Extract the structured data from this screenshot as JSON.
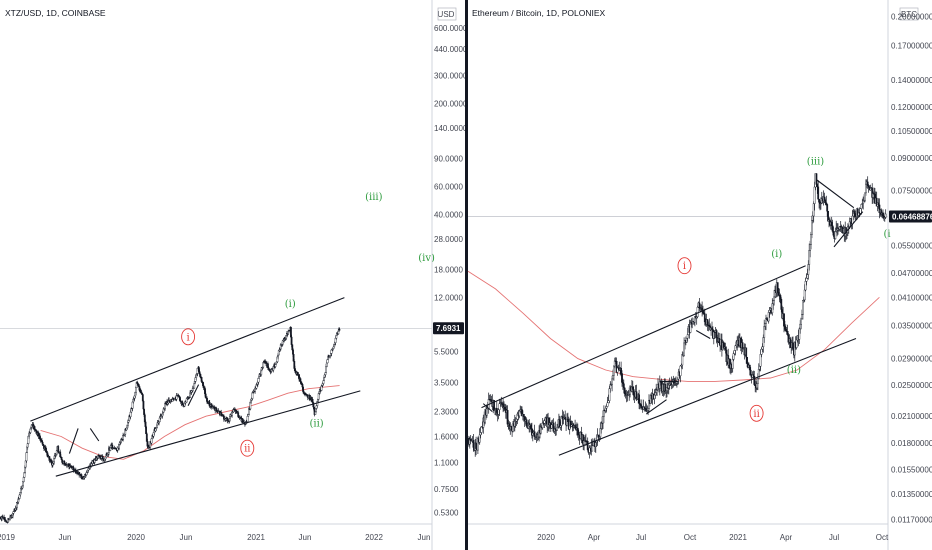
{
  "chart_data": [
    {
      "type": "candlestick",
      "title": "XTZ/USD, 1D, COINBASE",
      "currency": "USD",
      "scale": "log",
      "ylim": [
        0.45,
        800
      ],
      "xlim": [
        "2019-01-01",
        "2022-07-01"
      ],
      "price_ticks": [
        "600.0000",
        "440.0000",
        "300.0000",
        "200.0000",
        "140.0000",
        "90.0000",
        "60.0000",
        "40.0000",
        "28.0000",
        "18.0000",
        "12.0000",
        "7.6931",
        "5.5000",
        "3.5000",
        "2.3000",
        "1.6000",
        "1.1000",
        "0.7500",
        "0.5300"
      ],
      "current_price": "7.6931",
      "time_ticks": [
        "2019",
        "Jun",
        "2020",
        "Jun",
        "2021",
        "Jun",
        "2022",
        "Jun"
      ],
      "price_series": [
        [
          "2019-01-01",
          0.5
        ],
        [
          "2019-01-20",
          0.47
        ],
        [
          "2019-02-05",
          0.5
        ],
        [
          "2019-02-20",
          0.6
        ],
        [
          "2019-03-10",
          0.82
        ],
        [
          "2019-03-25",
          1.55
        ],
        [
          "2019-04-05",
          1.9
        ],
        [
          "2019-04-20",
          1.7
        ],
        [
          "2019-05-05",
          1.45
        ],
        [
          "2019-05-20",
          1.25
        ],
        [
          "2019-06-05",
          1.05
        ],
        [
          "2019-06-20",
          1.35
        ],
        [
          "2019-07-05",
          1.1
        ],
        [
          "2019-07-25",
          1.05
        ],
        [
          "2019-08-15",
          0.95
        ],
        [
          "2019-09-05",
          0.88
        ],
        [
          "2019-09-25",
          1.05
        ],
        [
          "2019-10-15",
          1.2
        ],
        [
          "2019-11-05",
          1.15
        ],
        [
          "2019-11-25",
          1.4
        ],
        [
          "2019-12-10",
          1.3
        ],
        [
          "2019-12-25",
          1.5
        ],
        [
          "2020-01-10",
          1.8
        ],
        [
          "2020-01-25",
          2.4
        ],
        [
          "2020-02-10",
          3.5
        ],
        [
          "2020-02-25",
          2.9
        ],
        [
          "2020-03-13",
          1.3
        ],
        [
          "2020-03-30",
          1.7
        ],
        [
          "2020-04-15",
          2.0
        ],
        [
          "2020-05-05",
          2.6
        ],
        [
          "2020-05-25",
          2.7
        ],
        [
          "2020-06-10",
          2.9
        ],
        [
          "2020-06-25",
          2.5
        ],
        [
          "2020-07-10",
          2.8
        ],
        [
          "2020-07-25",
          3.2
        ],
        [
          "2020-08-08",
          4.3
        ],
        [
          "2020-08-20",
          3.6
        ],
        [
          "2020-09-05",
          2.6
        ],
        [
          "2020-09-25",
          2.4
        ],
        [
          "2020-10-15",
          2.2
        ],
        [
          "2020-11-05",
          2.0
        ],
        [
          "2020-11-25",
          2.4
        ],
        [
          "2020-12-10",
          2.1
        ],
        [
          "2020-12-28",
          1.9
        ],
        [
          "2021-01-15",
          2.9
        ],
        [
          "2021-02-01",
          3.5
        ],
        [
          "2021-02-20",
          4.9
        ],
        [
          "2021-03-10",
          4.1
        ],
        [
          "2021-03-25",
          4.5
        ],
        [
          "2021-04-10",
          6.0
        ],
        [
          "2021-04-25",
          6.8
        ],
        [
          "2021-05-08",
          7.6
        ],
        [
          "2021-05-20",
          4.2
        ],
        [
          "2021-06-01",
          3.9
        ],
        [
          "2021-06-20",
          2.9
        ],
        [
          "2021-07-10",
          2.8
        ],
        [
          "2021-07-20",
          2.2
        ],
        [
          "2021-08-01",
          3.0
        ],
        [
          "2021-08-15",
          3.6
        ],
        [
          "2021-08-28",
          5.1
        ],
        [
          "2021-09-10",
          5.6
        ],
        [
          "2021-09-22",
          7.0
        ],
        [
          "2021-10-01",
          7.69
        ]
      ],
      "moving_average": [
        [
          "2019-05-01",
          1.75
        ],
        [
          "2019-07-01",
          1.6
        ],
        [
          "2019-09-01",
          1.35
        ],
        [
          "2019-11-01",
          1.2
        ],
        [
          "2020-01-01",
          1.15
        ],
        [
          "2020-03-01",
          1.3
        ],
        [
          "2020-05-01",
          1.6
        ],
        [
          "2020-07-01",
          1.9
        ],
        [
          "2020-09-01",
          2.15
        ],
        [
          "2020-11-01",
          2.3
        ],
        [
          "2021-01-01",
          2.45
        ],
        [
          "2021-03-01",
          2.7
        ],
        [
          "2021-05-01",
          3.0
        ],
        [
          "2021-07-01",
          3.2
        ],
        [
          "2021-09-01",
          3.3
        ],
        [
          "2021-10-01",
          3.35
        ]
      ],
      "trendlines": [
        [
          [
            "2019-04-01",
            2.0
          ],
          [
            "2021-10-15",
            12.0
          ]
        ],
        [
          [
            "2019-06-15",
            0.9
          ],
          [
            "2021-12-01",
            3.1
          ]
        ],
        [
          [
            "2019-07-25",
            1.25
          ],
          [
            "2019-08-20",
            1.8
          ]
        ],
        [
          [
            "2019-09-25",
            1.8
          ],
          [
            "2019-10-20",
            1.5
          ]
        ],
        [
          [
            "2020-07-10",
            2.5
          ],
          [
            "2020-08-10",
            3.4
          ]
        ]
      ],
      "wave_labels": [
        {
          "text": "i",
          "date": "2020-07-10",
          "price": 6.8,
          "style": "circled",
          "color": "#e53935"
        },
        {
          "text": "ii",
          "date": "2021-01-01",
          "price": 1.35,
          "style": "circled",
          "color": "#e53935"
        },
        {
          "text": "(i)",
          "date": "2021-05-08",
          "price": 11.0,
          "style": "paren",
          "color": "#2e9c3e"
        },
        {
          "text": "(ii)",
          "date": "2021-07-25",
          "price": 1.95,
          "style": "paren",
          "color": "#2e9c3e"
        },
        {
          "text": "(iii)",
          "date": "2022-01-10",
          "price": 52.0,
          "style": "paren",
          "color": "#2e9c3e"
        },
        {
          "text": "(iv)",
          "date": "2022-06-15",
          "price": 21.5,
          "style": "paren",
          "color": "#2e9c3e"
        }
      ]
    },
    {
      "type": "candlestick",
      "title": "Ethereum / Bitcoin, 1D, POLONIEX",
      "currency": "BTC",
      "scale": "log",
      "ylim": [
        0.0114,
        0.21
      ],
      "xlim": [
        "2019-04-01",
        "2021-10-20"
      ],
      "price_ticks": [
        "0.20000000",
        "0.17000000",
        "0.14000000",
        "0.12000000",
        "0.10500000",
        "0.09000000",
        "0.07500000",
        "0.06468876",
        "0.05500000",
        "0.04700000",
        "0.04100000",
        "0.03500000",
        "0.02900000",
        "0.02500000",
        "0.02100000",
        "0.01800000",
        "0.01550000",
        "0.01350000",
        "0.01170000"
      ],
      "current_price": "0.06468876",
      "time_ticks": [
        "2020",
        "Apr",
        "Jul",
        "Oct",
        "2021",
        "Apr",
        "Jul",
        "Oct"
      ],
      "price_series": [
        [
          "2019-04-01",
          0.0185
        ],
        [
          "2019-04-20",
          0.0175
        ],
        [
          "2019-05-05",
          0.0205
        ],
        [
          "2019-05-20",
          0.023
        ],
        [
          "2019-06-05",
          0.0215
        ],
        [
          "2019-06-20",
          0.0225
        ],
        [
          "2019-07-05",
          0.019
        ],
        [
          "2019-07-25",
          0.0215
        ],
        [
          "2019-08-15",
          0.0195
        ],
        [
          "2019-09-01",
          0.0185
        ],
        [
          "2019-09-20",
          0.0205
        ],
        [
          "2019-10-10",
          0.0195
        ],
        [
          "2019-10-30",
          0.0205
        ],
        [
          "2019-11-20",
          0.0195
        ],
        [
          "2019-12-10",
          0.0185
        ],
        [
          "2019-12-25",
          0.0175
        ],
        [
          "2020-01-10",
          0.0178
        ],
        [
          "2020-01-25",
          0.0205
        ],
        [
          "2020-02-10",
          0.024
        ],
        [
          "2020-02-20",
          0.028
        ],
        [
          "2020-03-05",
          0.027
        ],
        [
          "2020-03-13",
          0.0235
        ],
        [
          "2020-03-25",
          0.0245
        ],
        [
          "2020-04-10",
          0.0235
        ],
        [
          "2020-04-25",
          0.0215
        ],
        [
          "2020-05-10",
          0.0228
        ],
        [
          "2020-05-25",
          0.025
        ],
        [
          "2020-06-10",
          0.0245
        ],
        [
          "2020-06-25",
          0.025
        ],
        [
          "2020-07-10",
          0.0255
        ],
        [
          "2020-07-25",
          0.0315
        ],
        [
          "2020-08-05",
          0.0345
        ],
        [
          "2020-08-15",
          0.036
        ],
        [
          "2020-08-28",
          0.0395
        ],
        [
          "2020-09-10",
          0.0355
        ],
        [
          "2020-09-25",
          0.0335
        ],
        [
          "2020-10-10",
          0.0325
        ],
        [
          "2020-10-25",
          0.0295
        ],
        [
          "2020-11-05",
          0.0275
        ],
        [
          "2020-11-20",
          0.0325
        ],
        [
          "2020-12-05",
          0.0305
        ],
        [
          "2020-12-20",
          0.0265
        ],
        [
          "2021-01-01",
          0.0245
        ],
        [
          "2021-01-10",
          0.0295
        ],
        [
          "2021-01-20",
          0.0355
        ],
        [
          "2021-02-05",
          0.0385
        ],
        [
          "2021-02-15",
          0.0445
        ],
        [
          "2021-02-25",
          0.0385
        ],
        [
          "2021-03-10",
          0.0325
        ],
        [
          "2021-03-25",
          0.0305
        ],
        [
          "2021-04-05",
          0.0335
        ],
        [
          "2021-04-15",
          0.0405
        ],
        [
          "2021-04-25",
          0.0485
        ],
        [
          "2021-05-05",
          0.0635
        ],
        [
          "2021-05-12",
          0.0815
        ],
        [
          "2021-05-20",
          0.0705
        ],
        [
          "2021-06-01",
          0.0715
        ],
        [
          "2021-06-10",
          0.0635
        ],
        [
          "2021-06-22",
          0.0575
        ],
        [
          "2021-07-05",
          0.0615
        ],
        [
          "2021-07-20",
          0.0585
        ],
        [
          "2021-08-05",
          0.0655
        ],
        [
          "2021-08-20",
          0.0675
        ],
        [
          "2021-09-05",
          0.0785
        ],
        [
          "2021-09-20",
          0.0715
        ],
        [
          "2021-10-05",
          0.0665
        ],
        [
          "2021-10-15",
          0.0647
        ]
      ],
      "moving_average": [
        [
          "2019-04-01",
          0.0475
        ],
        [
          "2019-06-01",
          0.043
        ],
        [
          "2019-08-01",
          0.0375
        ],
        [
          "2019-10-01",
          0.0325
        ],
        [
          "2019-12-01",
          0.029
        ],
        [
          "2020-02-01",
          0.0272
        ],
        [
          "2020-04-01",
          0.0262
        ],
        [
          "2020-06-01",
          0.0258
        ],
        [
          "2020-08-01",
          0.0255
        ],
        [
          "2020-10-01",
          0.0255
        ],
        [
          "2020-12-01",
          0.0257
        ],
        [
          "2021-02-01",
          0.026
        ],
        [
          "2021-04-01",
          0.0272
        ],
        [
          "2021-06-01",
          0.0305
        ],
        [
          "2021-08-01",
          0.0355
        ],
        [
          "2021-10-01",
          0.041
        ]
      ],
      "trendlines": [
        [
          [
            "2019-05-01",
            0.022
          ],
          [
            "2021-04-20",
            0.049
          ]
        ],
        [
          [
            "2019-10-20",
            0.0168
          ],
          [
            "2021-08-10",
            0.0325
          ]
        ],
        [
          [
            "2019-05-05",
            0.0225
          ],
          [
            "2019-05-25",
            0.0215
          ]
        ],
        [
          [
            "2020-05-01",
            0.0212
          ],
          [
            "2020-06-15",
            0.023
          ]
        ],
        [
          [
            "2020-06-01",
            0.0255
          ],
          [
            "2020-07-10",
            0.0255
          ]
        ],
        [
          [
            "2020-08-20",
            0.034
          ],
          [
            "2020-09-20",
            0.0325
          ]
        ],
        [
          [
            "2021-05-15",
            0.0795
          ],
          [
            "2021-08-05",
            0.068
          ]
        ],
        [
          [
            "2021-06-22",
            0.0545
          ],
          [
            "2021-08-25",
            0.0665
          ]
        ]
      ],
      "wave_labels": [
        {
          "text": "i",
          "date": "2020-07-25",
          "price": 0.049,
          "style": "circled",
          "color": "#e53935"
        },
        {
          "text": "ii",
          "date": "2021-01-01",
          "price": 0.0213,
          "style": "circled",
          "color": "#e53935"
        },
        {
          "text": "(i)",
          "date": "2021-02-15",
          "price": 0.0525,
          "style": "paren",
          "color": "#2e9c3e"
        },
        {
          "text": "(ii)",
          "date": "2021-03-25",
          "price": 0.0273,
          "style": "paren",
          "color": "#2e9c3e"
        },
        {
          "text": "(iii)",
          "date": "2021-05-12",
          "price": 0.0885,
          "style": "paren",
          "color": "#2e9c3e"
        },
        {
          "text": "(i",
          "date": "2021-10-18",
          "price": 0.0588,
          "style": "paren",
          "color": "#2e9c3e"
        }
      ]
    }
  ]
}
